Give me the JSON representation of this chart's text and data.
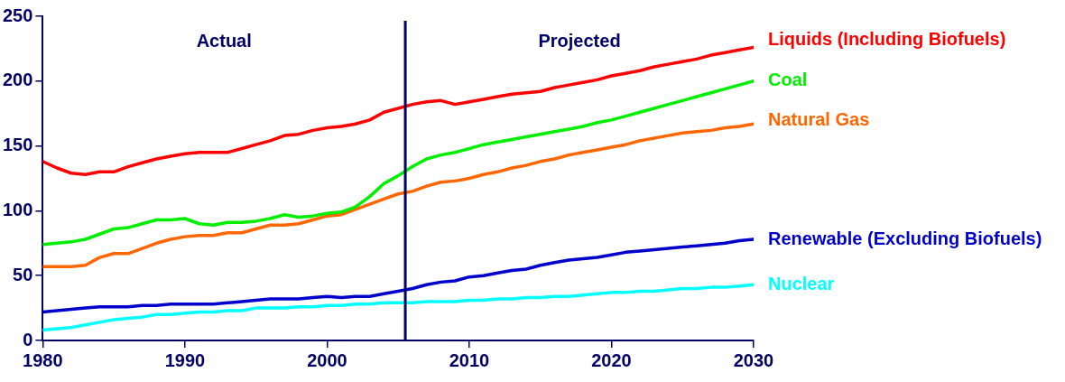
{
  "chart_data": {
    "type": "line",
    "x": [
      1980,
      1981,
      1982,
      1983,
      1984,
      1985,
      1986,
      1987,
      1988,
      1989,
      1990,
      1991,
      1992,
      1993,
      1994,
      1995,
      1996,
      1997,
      1998,
      1999,
      2000,
      2001,
      2002,
      2003,
      2004,
      2005,
      2006,
      2007,
      2008,
      2009,
      2010,
      2011,
      2012,
      2013,
      2014,
      2015,
      2016,
      2017,
      2018,
      2019,
      2020,
      2021,
      2022,
      2023,
      2024,
      2025,
      2026,
      2027,
      2028,
      2029,
      2030
    ],
    "series": [
      {
        "name": "Liquids (Including Biofuels)",
        "color": "#ff0000",
        "values": [
          138,
          133,
          129,
          128,
          130,
          130,
          134,
          137,
          140,
          142,
          144,
          145,
          145,
          145,
          148,
          151,
          154,
          158,
          159,
          162,
          164,
          165,
          167,
          170,
          176,
          179,
          182,
          184,
          185,
          182,
          184,
          186,
          188,
          190,
          191,
          192,
          195,
          197,
          199,
          201,
          204,
          206,
          208,
          211,
          213,
          215,
          217,
          220,
          222,
          224,
          226
        ]
      },
      {
        "name": "Coal",
        "color": "#00ee00",
        "values": [
          74,
          75,
          76,
          78,
          82,
          86,
          87,
          90,
          93,
          93,
          94,
          90,
          89,
          91,
          91,
          92,
          94,
          97,
          95,
          96,
          98,
          99,
          103,
          111,
          121,
          127,
          134,
          140,
          143,
          145,
          148,
          151,
          153,
          155,
          157,
          159,
          161,
          163,
          165,
          168,
          170,
          173,
          176,
          179,
          182,
          185,
          188,
          191,
          194,
          197,
          200
        ]
      },
      {
        "name": "Natural Gas",
        "color": "#ff6600",
        "values": [
          57,
          57,
          57,
          58,
          64,
          67,
          67,
          71,
          75,
          78,
          80,
          81,
          81,
          83,
          83,
          86,
          89,
          89,
          90,
          93,
          96,
          97,
          101,
          105,
          109,
          113,
          115,
          119,
          122,
          123,
          125,
          128,
          130,
          133,
          135,
          138,
          140,
          143,
          145,
          147,
          149,
          151,
          154,
          156,
          158,
          160,
          161,
          162,
          164,
          165,
          167
        ]
      },
      {
        "name": "Renewable (Excluding Biofuels)",
        "color": "#0000cc",
        "values": [
          22,
          23,
          24,
          25,
          26,
          26,
          26,
          27,
          27,
          28,
          28,
          28,
          28,
          29,
          30,
          31,
          32,
          32,
          32,
          33,
          34,
          33,
          34,
          34,
          36,
          38,
          40,
          43,
          45,
          46,
          49,
          50,
          52,
          54,
          55,
          58,
          60,
          62,
          63,
          64,
          66,
          68,
          69,
          70,
          71,
          72,
          73,
          74,
          75,
          77,
          78
        ]
      },
      {
        "name": "Nuclear",
        "color": "#00ffff",
        "values": [
          8,
          9,
          10,
          12,
          14,
          16,
          17,
          18,
          20,
          20,
          21,
          22,
          22,
          23,
          23,
          25,
          25,
          25,
          26,
          26,
          27,
          27,
          28,
          28,
          29,
          29,
          29,
          30,
          30,
          30,
          31,
          31,
          32,
          32,
          33,
          33,
          34,
          34,
          35,
          36,
          37,
          37,
          38,
          38,
          39,
          40,
          40,
          41,
          41,
          42,
          43
        ]
      }
    ],
    "xlim": [
      1980,
      2030
    ],
    "xticks": [
      1980,
      1990,
      2000,
      2010,
      2020,
      2030
    ],
    "ylim": [
      0,
      250
    ],
    "yticks": [
      0,
      50,
      100,
      150,
      200,
      250
    ],
    "ref_lines": [
      {
        "axis": "x",
        "value": 2005.5,
        "color": "#000066"
      }
    ],
    "annotations": [
      "Actual",
      "Projected"
    ],
    "grid": false,
    "legend": false,
    "marker": "none",
    "line_style": "solid"
  }
}
